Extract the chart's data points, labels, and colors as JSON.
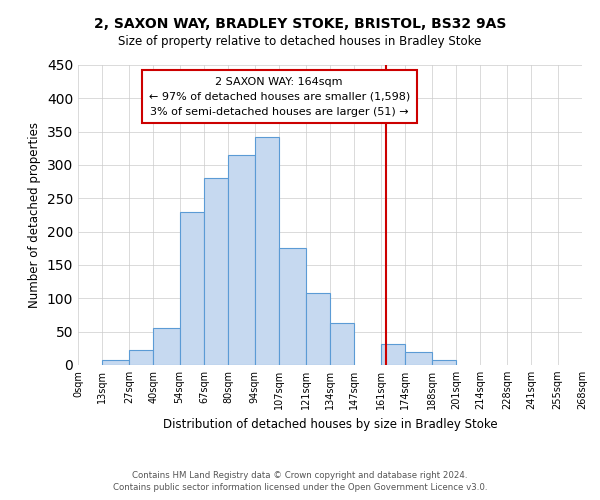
{
  "title": "2, SAXON WAY, BRADLEY STOKE, BRISTOL, BS32 9AS",
  "subtitle": "Size of property relative to detached houses in Bradley Stoke",
  "xlabel": "Distribution of detached houses by size in Bradley Stoke",
  "ylabel": "Number of detached properties",
  "footer_line1": "Contains HM Land Registry data © Crown copyright and database right 2024.",
  "footer_line2": "Contains public sector information licensed under the Open Government Licence v3.0.",
  "bin_edges": [
    0,
    13,
    27,
    40,
    54,
    67,
    80,
    94,
    107,
    121,
    134,
    147,
    161,
    174,
    188,
    201,
    214,
    228,
    241,
    255,
    268
  ],
  "bin_labels": [
    "0sqm",
    "13sqm",
    "27sqm",
    "40sqm",
    "54sqm",
    "67sqm",
    "80sqm",
    "94sqm",
    "107sqm",
    "121sqm",
    "134sqm",
    "147sqm",
    "161sqm",
    "174sqm",
    "188sqm",
    "201sqm",
    "214sqm",
    "228sqm",
    "241sqm",
    "255sqm",
    "268sqm"
  ],
  "counts": [
    0,
    7,
    22,
    55,
    230,
    280,
    315,
    342,
    176,
    108,
    63,
    0,
    32,
    19,
    7,
    0,
    0,
    0,
    0,
    0
  ],
  "bar_color": "#c6d9f0",
  "bar_edge_color": "#5b9bd5",
  "property_line_x": 164,
  "annotation_title": "2 SAXON WAY: 164sqm",
  "annotation_line1": "← 97% of detached houses are smaller (1,598)",
  "annotation_line2": "3% of semi-detached houses are larger (51) →",
  "annotation_box_color": "#ffffff",
  "annotation_box_edge": "#cc0000",
  "vline_color": "#cc0000",
  "ylim": [
    0,
    450
  ],
  "xlim": [
    0,
    268
  ],
  "background_color": "#ffffff",
  "grid_color": "#cccccc"
}
